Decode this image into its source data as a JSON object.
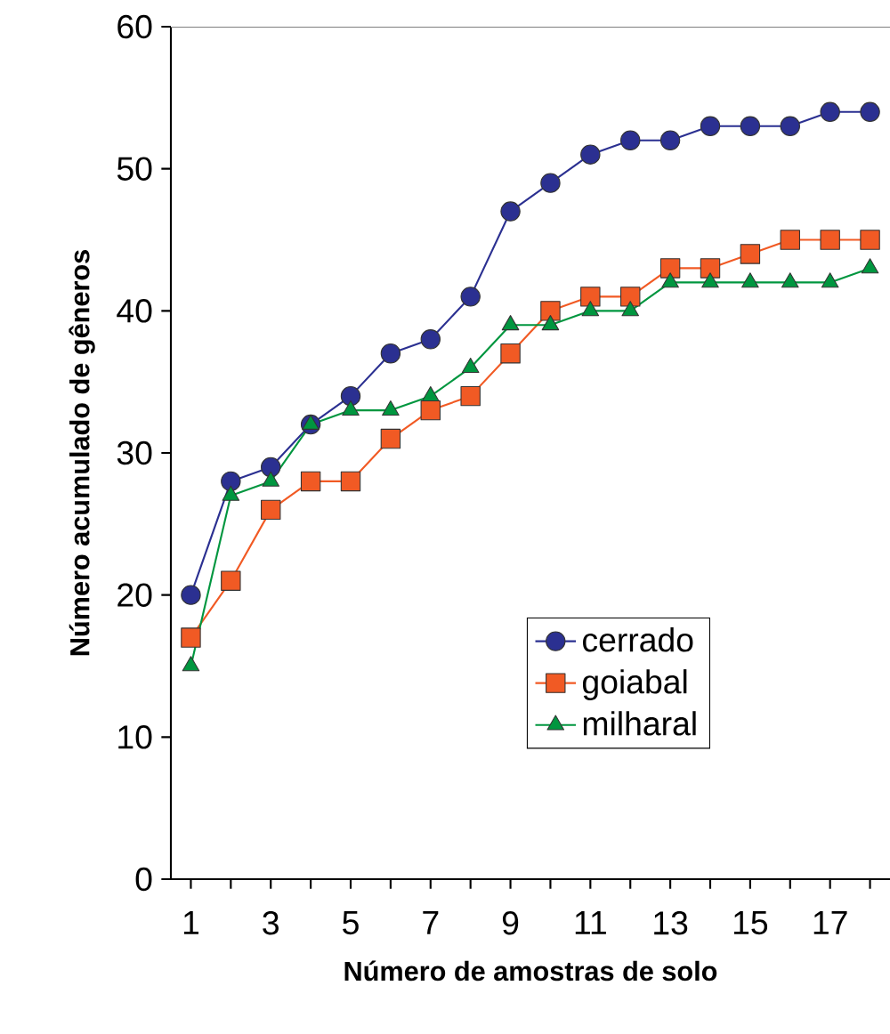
{
  "chart_data": {
    "type": "line",
    "xlabel": "Número de amostras de solo",
    "ylabel": "Número acumulado de gêneros",
    "x": [
      1,
      2,
      3,
      4,
      5,
      6,
      7,
      8,
      9,
      10,
      11,
      12,
      13,
      14,
      15,
      16,
      17,
      18
    ],
    "series": [
      {
        "name": "cerrado",
        "color": "#2b3091",
        "marker": "circle",
        "values": [
          20,
          28,
          29,
          32,
          34,
          37,
          38,
          41,
          47,
          49,
          51,
          52,
          52,
          53,
          53,
          53,
          54,
          54
        ]
      },
      {
        "name": "goiabal",
        "color": "#f15a24",
        "marker": "square",
        "values": [
          17,
          21,
          26,
          28,
          28,
          31,
          33,
          34,
          37,
          40,
          41,
          41,
          43,
          43,
          44,
          45,
          45,
          45
        ]
      },
      {
        "name": "milharal",
        "color": "#00963f",
        "marker": "triangle",
        "values": [
          15,
          27,
          28,
          32,
          33,
          33,
          34,
          36,
          39,
          39,
          40,
          40,
          42,
          42,
          42,
          42,
          42,
          43
        ]
      }
    ],
    "xlim": [
      0.5,
      18.5
    ],
    "xticks": [
      1,
      {
        "value": 2,
        "label": null
      },
      3,
      {
        "value": 4,
        "label": null
      },
      5,
      {
        "value": 6,
        "label": null
      },
      7,
      {
        "value": 8,
        "label": null
      },
      9,
      {
        "value": 10,
        "label": null
      },
      11,
      {
        "value": 12,
        "label": null
      },
      13,
      {
        "value": 14,
        "label": null
      },
      15,
      {
        "value": 16,
        "label": null
      },
      17,
      {
        "value": 18,
        "label": null
      }
    ],
    "ylim": [
      0,
      60
    ],
    "yticks": [
      0,
      10,
      20,
      30,
      40,
      50,
      60
    ],
    "grid": false,
    "legend": "right",
    "line_style": "solid"
  }
}
